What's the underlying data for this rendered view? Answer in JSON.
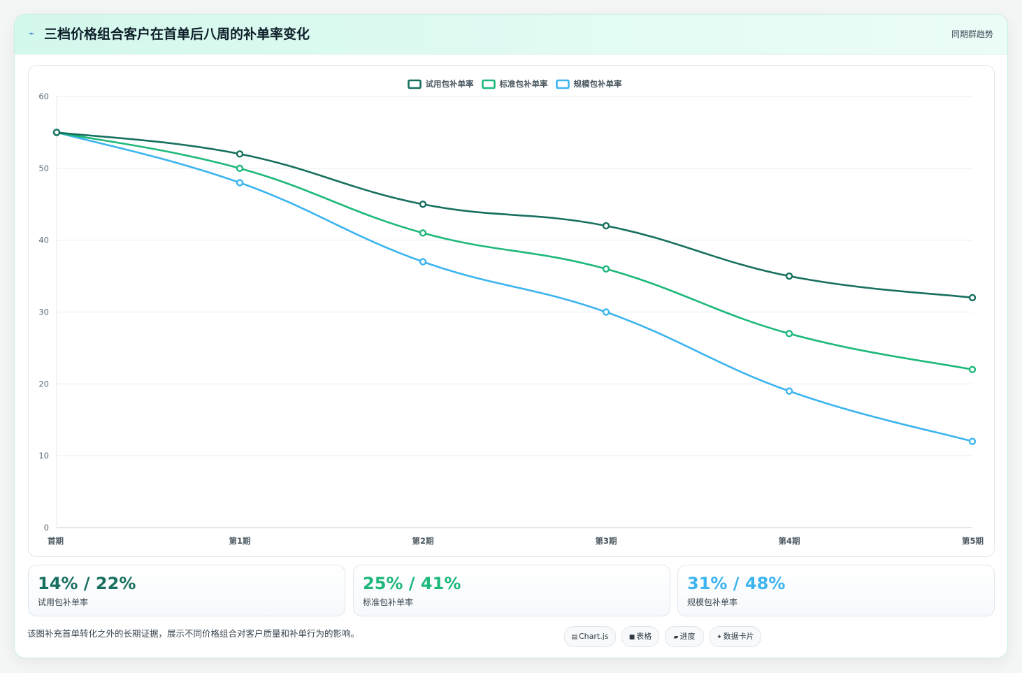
{
  "header": {
    "icon": "sparkline-icon",
    "title": "三档价格组合客户在首单后八周的补单率变化",
    "tag": "同期群趋势"
  },
  "chart_data": {
    "type": "line",
    "categories": [
      "首期",
      "第1期",
      "第2期",
      "第3期",
      "第4期",
      "第5期"
    ],
    "series": [
      {
        "name": "试用包补单率",
        "color": "#17705f",
        "values": [
          55,
          52,
          45,
          42,
          35,
          32
        ]
      },
      {
        "name": "标准包补单率",
        "color": "#1db87a",
        "values": [
          55,
          50,
          41,
          36,
          27,
          22
        ]
      },
      {
        "name": "规模包补单率",
        "color": "#3cb4ef",
        "values": [
          55,
          48,
          37,
          30,
          19,
          12
        ]
      }
    ],
    "ylim": [
      0,
      60
    ],
    "yticks": [
      0,
      10,
      20,
      30,
      40,
      50,
      60
    ],
    "grid": true,
    "legend": "top-center"
  },
  "stats": [
    {
      "value": "14% / 22%",
      "label": "试用包补单率",
      "color": "#17705f"
    },
    {
      "value": "25% / 41%",
      "label": "标准包补单率",
      "color": "#1db87a"
    },
    {
      "value": "31% / 48%",
      "label": "规模包补单率",
      "color": "#3cb4ef"
    }
  ],
  "footnote": "该图补充首单转化之外的长期证据，展示不同价格组合对客户质量和补单行为的影响。",
  "chips": [
    {
      "icon": "▤",
      "label": "Chart.js"
    },
    {
      "icon": "■",
      "label": "表格"
    },
    {
      "icon": "▰",
      "label": "进度"
    },
    {
      "icon": "✦",
      "label": "数据卡片"
    }
  ]
}
